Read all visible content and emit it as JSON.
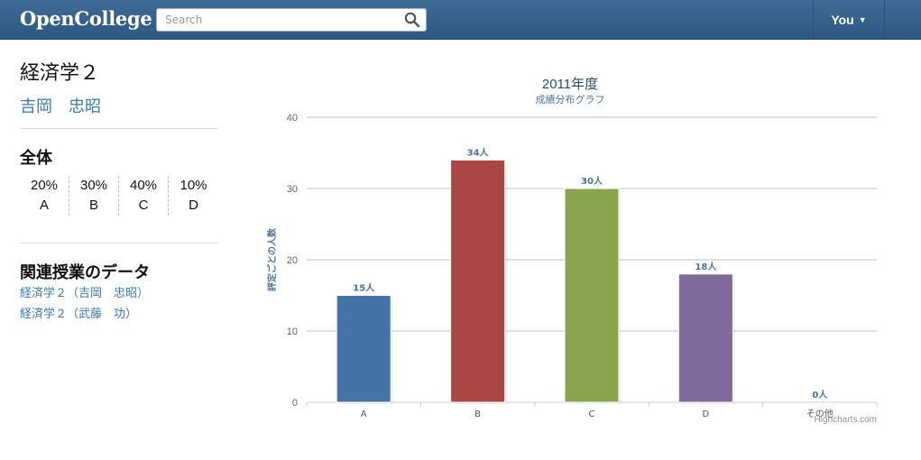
{
  "header": {
    "brand": "OpenCollege",
    "search_placeholder": "Search",
    "user_label": "You",
    "user_caret": "▼"
  },
  "course": {
    "title": "経済学２",
    "instructor": "吉岡　忠昭"
  },
  "overall": {
    "title": "全体",
    "distribution": [
      {
        "percent": "20%",
        "grade": "A"
      },
      {
        "percent": "30%",
        "grade": "B"
      },
      {
        "percent": "40%",
        "grade": "C"
      },
      {
        "percent": "10%",
        "grade": "D"
      }
    ]
  },
  "related": {
    "title": "関連授業のデータ",
    "links": [
      "経済学２（吉岡　忠昭）",
      "経済学２（武藤　功）"
    ]
  },
  "chart_data": {
    "type": "bar",
    "title": "2011年度",
    "subtitle": "成績分布グラフ",
    "ylabel": "評定ごとの人数",
    "xlabel": "",
    "categories": [
      "A",
      "B",
      "C",
      "D",
      "その他"
    ],
    "values": [
      15,
      34,
      30,
      18,
      0
    ],
    "data_labels": [
      "15人",
      "34人",
      "30人",
      "18人",
      "0人"
    ],
    "colors": [
      "#4572a7",
      "#aa4643",
      "#89a54e",
      "#80699b",
      "#3d96ae"
    ],
    "ylim": [
      0,
      40
    ],
    "yticks": [
      0,
      10,
      20,
      30,
      40
    ],
    "grid": true,
    "legend": "none",
    "credits": "Highcharts.com"
  }
}
